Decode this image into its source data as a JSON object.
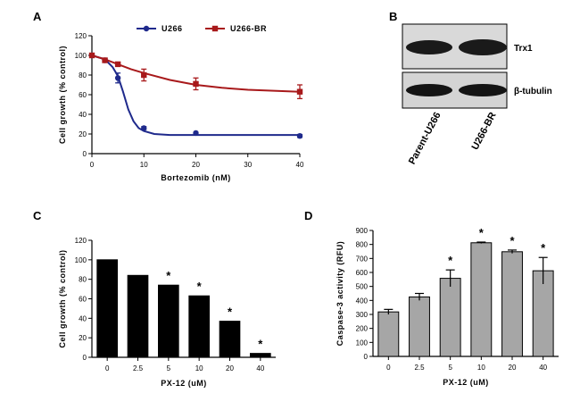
{
  "panel_labels": {
    "a": "A",
    "b": "B",
    "c": "C",
    "d": "D"
  },
  "blot": {
    "bands": [
      {
        "name": "Trx1",
        "background": "#d9d9d9",
        "band_color": "#1a1a1a"
      },
      {
        "name": "β-tubulin",
        "background": "#d4d4d4",
        "band_color": "#141414"
      }
    ],
    "lanes": [
      "Parent-U266",
      "U266-BR"
    ]
  },
  "chart_data": [
    {
      "type": "line",
      "panel": "A",
      "xlabel": "Bortezomib (nM)",
      "ylabel": "Cell growth (% control)",
      "xlim": [
        0,
        40
      ],
      "ylim": [
        0,
        120
      ],
      "xticks": [
        "0",
        "10",
        "20",
        "30",
        "40"
      ],
      "yticks": [
        "0",
        "20",
        "40",
        "60",
        "80",
        "100",
        "120"
      ],
      "legend_position": "top",
      "series": [
        {
          "name": "U266",
          "color": "#1f2a8c",
          "marker": "circle",
          "x": [
            0,
            2.5,
            5,
            10,
            20,
            40
          ],
          "y": [
            100,
            95,
            77,
            26,
            21,
            18
          ],
          "err": [
            0,
            1.5,
            5,
            1.5,
            0.5,
            1.5
          ],
          "fit": [
            [
              0,
              100
            ],
            [
              2.5,
              96
            ],
            [
              4,
              88
            ],
            [
              5,
              79
            ],
            [
              6,
              63
            ],
            [
              7,
              45
            ],
            [
              8,
              33
            ],
            [
              9,
              26
            ],
            [
              10,
              23
            ],
            [
              12,
              20
            ],
            [
              15,
              19
            ],
            [
              20,
              19
            ],
            [
              30,
              19
            ],
            [
              40,
              19
            ]
          ]
        },
        {
          "name": "U266-BR",
          "color": "#a8191b",
          "marker": "square",
          "x": [
            0,
            2.5,
            5,
            10,
            20,
            40
          ],
          "y": [
            100,
            95,
            91,
            80,
            71,
            63
          ],
          "err": [
            0,
            1.5,
            1.5,
            6,
            6,
            7
          ],
          "fit": [
            [
              0,
              100
            ],
            [
              2.5,
              96
            ],
            [
              5,
              91
            ],
            [
              7.5,
              86
            ],
            [
              10,
              82
            ],
            [
              15,
              75
            ],
            [
              20,
              70
            ],
            [
              25,
              67
            ],
            [
              30,
              65
            ],
            [
              35,
              64
            ],
            [
              40,
              63
            ]
          ]
        }
      ]
    },
    {
      "type": "bar",
      "panel": "C",
      "xlabel": "PX-12 (uM)",
      "ylabel": "Cell growth (% control)",
      "categories": [
        "0",
        "2.5",
        "5",
        "10",
        "20",
        "40"
      ],
      "values": [
        100,
        84,
        74,
        63,
        37,
        4
      ],
      "significant": [
        false,
        false,
        true,
        true,
        true,
        true
      ],
      "marker_text": "*",
      "ylim": [
        0,
        120
      ],
      "yticks": [
        "0",
        "20",
        "40",
        "60",
        "80",
        "100",
        "120"
      ],
      "bar_color": "#000000"
    },
    {
      "type": "bar",
      "panel": "D",
      "xlabel": "PX-12 (uM)",
      "ylabel": "Caspase-3 activity (RFU)",
      "categories": [
        "0",
        "2.5",
        "5",
        "10",
        "20",
        "40"
      ],
      "values": [
        318,
        425,
        558,
        812,
        748,
        612
      ],
      "err": [
        18,
        25,
        60,
        5,
        12,
        95
      ],
      "significant": [
        false,
        false,
        true,
        true,
        true,
        true
      ],
      "marker_text": "*",
      "ylim": [
        0,
        900
      ],
      "yticks": [
        "0",
        "100",
        "200",
        "300",
        "400",
        "500",
        "600",
        "700",
        "800",
        "900"
      ],
      "bar_color": "#a6a6a6"
    }
  ]
}
